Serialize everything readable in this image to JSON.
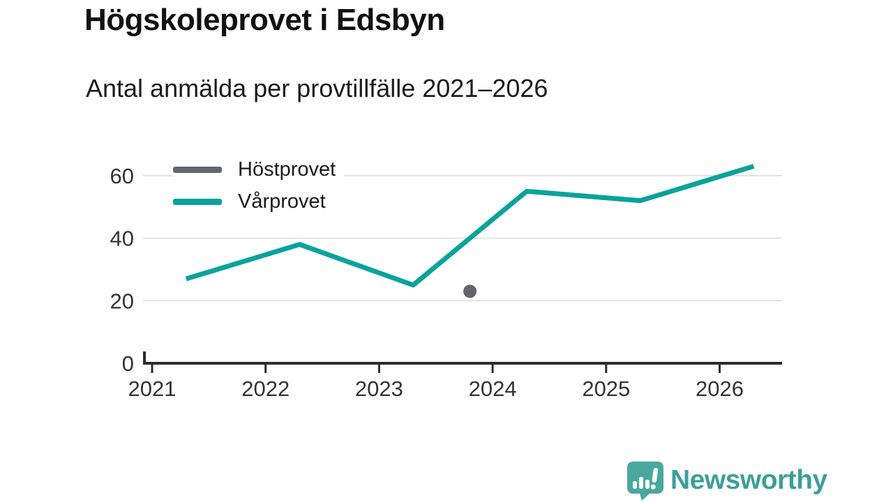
{
  "header": {
    "title": "Högskoleprovet i Edsbyn",
    "subtitle": "Antal anmälda per provtillfälle 2021–2026"
  },
  "chart_data": {
    "type": "line",
    "title": "Högskoleprovet i Edsbyn",
    "subtitle": "Antal anmälda per provtillfälle 2021–2026",
    "xlabel": "",
    "ylabel": "",
    "xlim": [
      2020.92,
      2026.55
    ],
    "ylim": [
      0,
      66
    ],
    "x_ticks": [
      2021,
      2022,
      2023,
      2024,
      2025,
      2026
    ],
    "y_ticks": [
      0,
      20,
      40,
      60
    ],
    "grid": "horizontal",
    "legend_position": "top-left-inside",
    "series": [
      {
        "name": "Höstprovet",
        "type": "scatter",
        "color": "#64646C",
        "x": [
          2023.8
        ],
        "values": [
          23
        ]
      },
      {
        "name": "Vårprovet",
        "type": "line",
        "color": "#0AA29B",
        "x": [
          2021.3,
          2022.3,
          2023.3,
          2024.3,
          2025.3,
          2026.3
        ],
        "values": [
          27,
          38,
          25,
          55,
          52,
          63
        ]
      }
    ],
    "colors": {
      "axis": "#2B2B2B",
      "grid": "#E2E2E2",
      "tick_label": "#333333"
    }
  },
  "footer": {
    "brand": "Newsworthy",
    "brand_color": "#3E9E99",
    "logo_color": "#4AA79E",
    "logo_icon": "bar-chart-speech-bubble-icon"
  }
}
